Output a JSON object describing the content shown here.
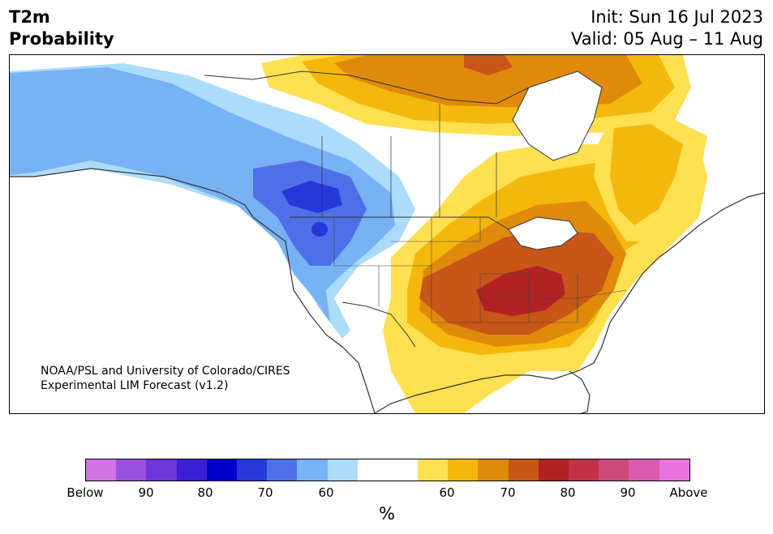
{
  "header": {
    "title_line1": "T2m",
    "title_line2": "Probability",
    "init_line": "Init: Sun 16 Jul 2023",
    "valid_line": "Valid: 05 Aug – 11 Aug"
  },
  "credit": {
    "line1": "NOAA/PSL and University of Colorado/CIRES",
    "line2": "Experimental LIM Forecast (v1.2)"
  },
  "colorbar": {
    "segments": [
      "#d473e6",
      "#9b51df",
      "#6c36d8",
      "#3b1fd6",
      "#0000cc",
      "#2738da",
      "#4f6fe8",
      "#77b2f4",
      "#acdcfc",
      "#ffffff",
      "#ffffff",
      "#fee050",
      "#f4b80c",
      "#e08a0c",
      "#c85618",
      "#b22222",
      "#c23246",
      "#cc4a7a",
      "#da5aae",
      "#e873df"
    ],
    "labels": [
      "Below",
      "90",
      "80",
      "70",
      "60",
      "60",
      "70",
      "80",
      "90",
      "Above"
    ],
    "unit": "%"
  },
  "legend_colors": {
    "below_strong": "#2738da",
    "below_mid": "#4f6fe8",
    "below_light": "#77b2f4",
    "below_faint": "#acdcfc",
    "neutral": "#ffffff",
    "above_faint": "#fee050",
    "above_light": "#f4b80c",
    "above_mid": "#e08a0c",
    "above_strong": "#c85618",
    "above_max": "#b22222"
  }
}
